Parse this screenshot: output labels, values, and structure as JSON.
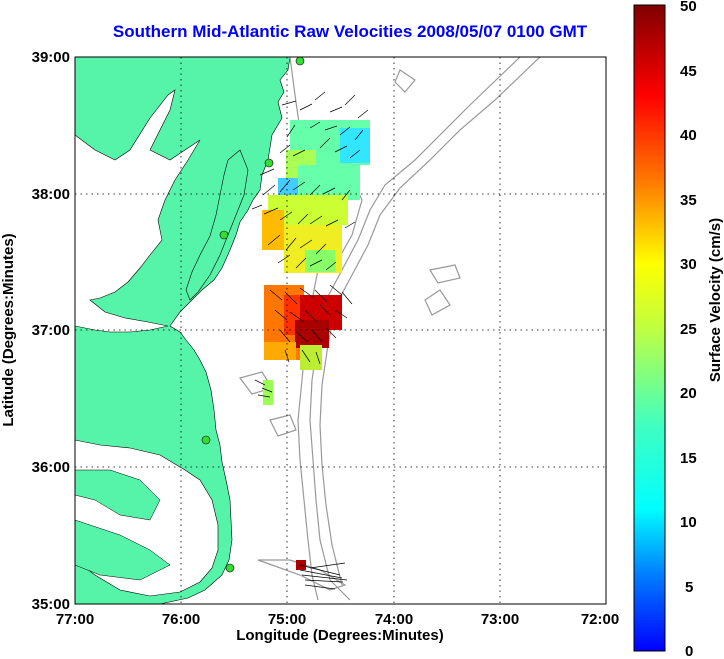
{
  "title": "Southern Mid-Atlantic Raw Velocities 2008/05/07 0100 GMT",
  "axes": {
    "xlabel": "Longitude (Degrees:Minutes)",
    "ylabel": "Latitude (Degrees:Minutes)",
    "x_ticks": [
      "77:00",
      "76:00",
      "75:00",
      "74:00",
      "73:00",
      "72:00"
    ],
    "y_ticks": [
      "39:00",
      "38:00",
      "37:00",
      "36:00",
      "35:00"
    ],
    "xlim": [
      -77,
      -72
    ],
    "ylim": [
      35,
      39
    ]
  },
  "colorbar": {
    "label": "Surface Velocity (cm/s)",
    "ticks": [
      "50",
      "45",
      "40",
      "35",
      "30",
      "25",
      "20",
      "15",
      "10",
      "5",
      "0"
    ],
    "range": [
      0,
      50
    ]
  },
  "colors": {
    "land": "#55f4a8",
    "title": "#0000ff",
    "bathymetry": "#999999",
    "station": "#33dd33"
  }
}
